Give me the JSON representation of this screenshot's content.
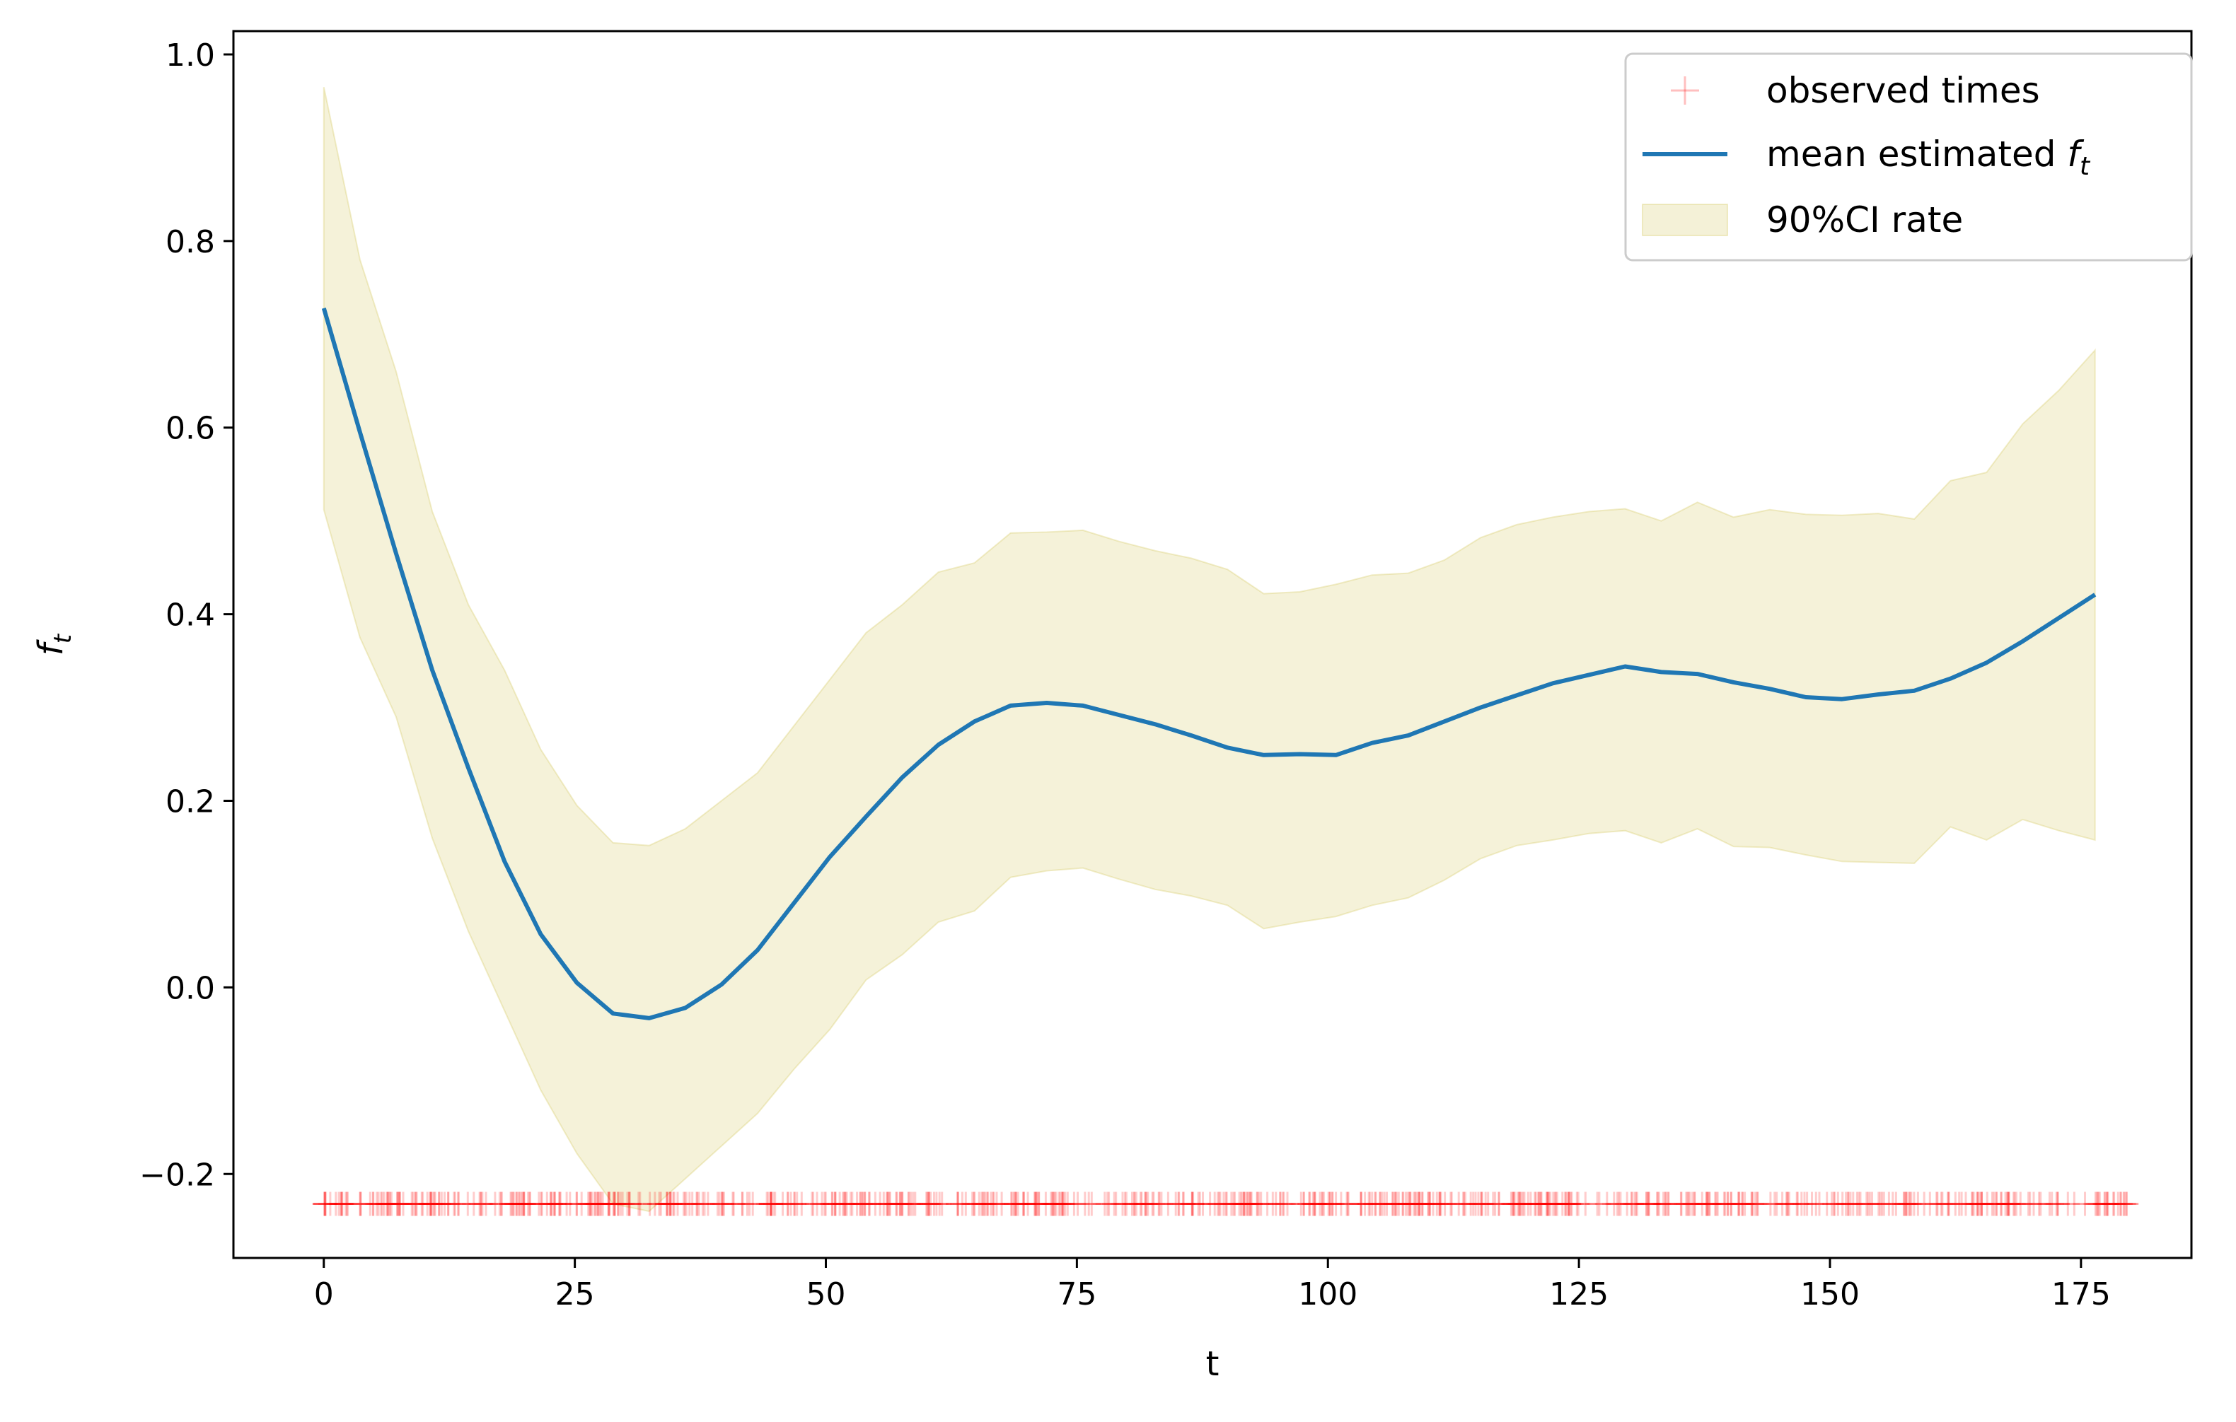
{
  "chart_data": {
    "type": "line",
    "title": "",
    "xlabel": "t",
    "ylabel_base": "f",
    "ylabel_sub": "t",
    "xlim": [
      -9,
      186
    ],
    "ylim": [
      -0.29,
      1.025
    ],
    "xticks": [
      0,
      25,
      50,
      75,
      100,
      125,
      150,
      175
    ],
    "xtick_labels": [
      "0",
      "25",
      "50",
      "75",
      "100",
      "125",
      "150",
      "175"
    ],
    "yticks": [
      -0.2,
      0.0,
      0.2,
      0.4,
      0.6,
      0.8,
      1.0
    ],
    "ytick_labels": [
      "−0.2",
      "0.0",
      "0.2",
      "0.4",
      "0.6",
      "0.8",
      "1.0"
    ],
    "grid": false,
    "legend_position": "top-right",
    "legend": [
      {
        "label": "observed times",
        "marker": "plus",
        "color": "#ff0000"
      },
      {
        "label_base": "mean estimated ",
        "label_italic": "f",
        "label_sub": "t",
        "marker": "line",
        "color": "#1f77b4"
      },
      {
        "label": "90%CI rate",
        "marker": "patch",
        "color": "#dcd27a"
      }
    ],
    "colors": {
      "mean": "#1f77b4",
      "ci_fill": "#d8cc66",
      "observed": "#ff0000"
    },
    "x": [
      0,
      3.6,
      7.2,
      10.8,
      14.4,
      18,
      21.6,
      25.2,
      28.8,
      32.4,
      36,
      39.6,
      43.2,
      46.8,
      50.4,
      54,
      57.6,
      61.2,
      64.8,
      68.4,
      72,
      75.6,
      79.2,
      82.8,
      86.4,
      90,
      93.6,
      97.2,
      100.8,
      104.4,
      108,
      111.6,
      115.2,
      118.8,
      122.4,
      126,
      129.6,
      133.2,
      136.8,
      140.4,
      144,
      147.6,
      151.2,
      154.8,
      158.4,
      162,
      165.6,
      169.2,
      172.8,
      176.4
    ],
    "series": [
      {
        "name": "mean estimated f_t",
        "values": [
          0.728,
          0.595,
          0.465,
          0.34,
          0.235,
          0.135,
          0.057,
          0.005,
          -0.028,
          -0.033,
          -0.022,
          0.003,
          0.04,
          0.09,
          0.14,
          0.183,
          0.225,
          0.26,
          0.285,
          0.302,
          0.305,
          0.302,
          0.292,
          0.282,
          0.27,
          0.257,
          0.249,
          0.25,
          0.249,
          0.262,
          0.27,
          0.285,
          0.3,
          0.313,
          0.326,
          0.335,
          0.344,
          0.338,
          0.336,
          0.327,
          0.32,
          0.311,
          0.309,
          0.314,
          0.318,
          0.331,
          0.348,
          0.371,
          0.396,
          0.421
        ]
      }
    ],
    "ci_upper": [
      0.965,
      0.78,
      0.66,
      0.51,
      0.41,
      0.34,
      0.255,
      0.195,
      0.155,
      0.152,
      0.17,
      0.2,
      0.23,
      0.28,
      0.33,
      0.38,
      0.41,
      0.445,
      0.455,
      0.487,
      0.488,
      0.49,
      0.478,
      0.468,
      0.46,
      0.448,
      0.422,
      0.424,
      0.432,
      0.442,
      0.444,
      0.458,
      0.482,
      0.496,
      0.504,
      0.51,
      0.513,
      0.5,
      0.52,
      0.504,
      0.512,
      0.507,
      0.506,
      0.508,
      0.502,
      0.543,
      0.552,
      0.604,
      0.64,
      0.683
    ],
    "ci_lower": [
      0.512,
      0.375,
      0.29,
      0.16,
      0.06,
      -0.025,
      -0.11,
      -0.178,
      -0.232,
      -0.24,
      -0.205,
      -0.17,
      -0.135,
      -0.088,
      -0.045,
      0.008,
      0.035,
      0.07,
      0.082,
      0.118,
      0.125,
      0.128,
      0.116,
      0.105,
      0.098,
      0.088,
      0.063,
      0.07,
      0.076,
      0.088,
      0.096,
      0.115,
      0.138,
      0.152,
      0.158,
      0.165,
      0.168,
      0.155,
      0.17,
      0.151,
      0.15,
      0.142,
      0.135,
      0.134,
      0.133,
      0.172,
      0.158,
      0.18,
      0.168,
      0.158
    ],
    "observed_y": -0.232,
    "observed_range": [
      0,
      180
    ],
    "observed_count": 700
  }
}
